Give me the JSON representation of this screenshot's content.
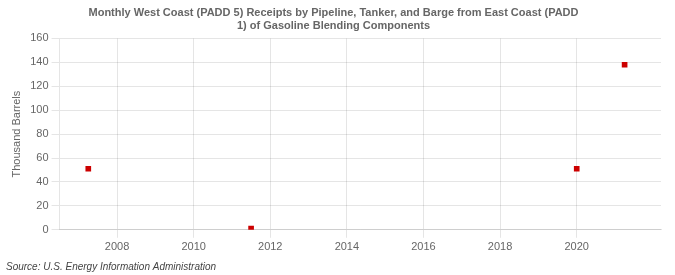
{
  "chart_data": {
    "type": "scatter",
    "title": "Monthly West Coast (PADD 5) Receipts by Pipeline, Tanker, and Barge from East Coast (PADD\n1) of Gasoline Blending Components",
    "ylabel": "Thousand Barrels",
    "annotations": [
      "Source: U.S. Energy Information Administration"
    ],
    "x": [
      2007.25,
      2011.5,
      2020.0,
      2021.25
    ],
    "values": [
      51,
      1,
      51,
      138
    ],
    "color": "#cc0000",
    "marker": "square",
    "xlim": [
      2006.5,
      2022.2
    ],
    "xticks": [
      2008,
      2010,
      2012,
      2014,
      2016,
      2018,
      2020
    ],
    "ylim": [
      0,
      160
    ],
    "yticks": [
      0,
      20,
      40,
      60,
      80,
      100,
      120,
      140,
      160
    ],
    "grid": true
  }
}
